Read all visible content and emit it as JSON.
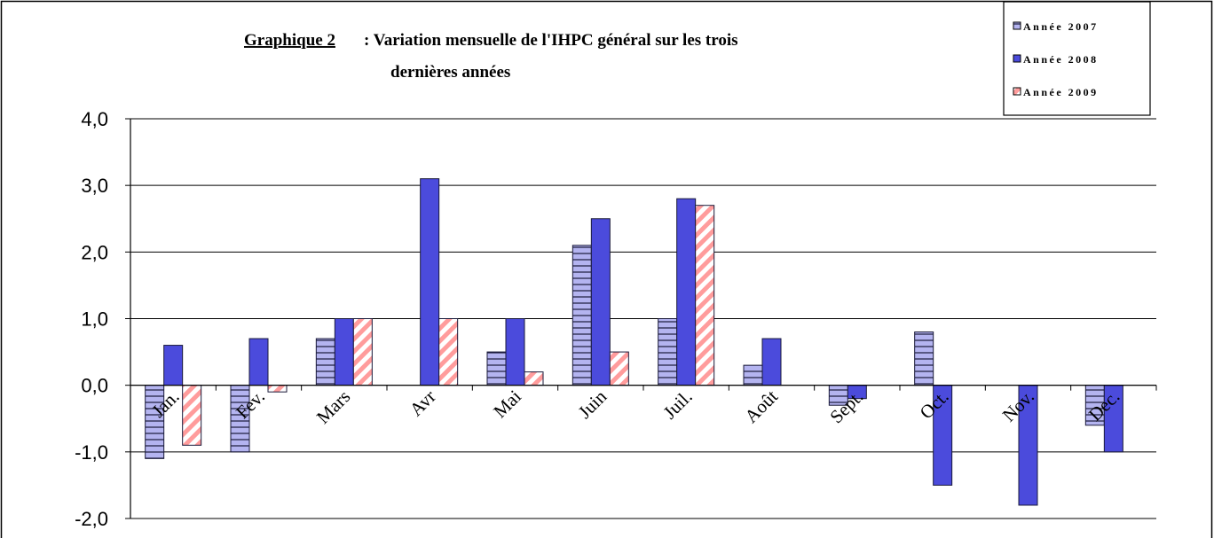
{
  "chart_data": {
    "type": "bar",
    "figure_label": "Graphique 2",
    "title_lines": [
      ":  Variation mensuelle de l'IHPC général sur les trois",
      "dernières années"
    ],
    "categories": [
      "Jan.",
      "Fev.",
      "Mars",
      "Avr",
      "Mai",
      "Juin",
      "Juil.",
      "Août",
      "Sept.",
      "Oct.",
      "Nov.",
      "Dec."
    ],
    "series": [
      {
        "name": "Année 2007",
        "color": "#b4b4f0",
        "pattern": "horizontal",
        "values": [
          -1.1,
          -1.0,
          0.7,
          0,
          0.5,
          2.1,
          1.0,
          0.3,
          -0.3,
          0.8,
          0,
          -0.6
        ]
      },
      {
        "name": "Année 2008",
        "color": "#4b4bdc",
        "pattern": "solid",
        "values": [
          0.6,
          0.7,
          1.0,
          3.1,
          1.0,
          2.5,
          2.8,
          0.7,
          -0.2,
          -1.5,
          -1.8,
          -1.0
        ]
      },
      {
        "name": "Année 2009",
        "color": "#ff9c9c",
        "pattern": "diagonal",
        "values": [
          -0.9,
          -0.1,
          1.0,
          1.0,
          0.2,
          0.5,
          2.7,
          null,
          null,
          null,
          null,
          null
        ]
      }
    ],
    "ylim": [
      -2,
      4
    ],
    "yticks": [
      {
        "value": -2,
        "label": "-2,0"
      },
      {
        "value": -1,
        "label": "-1,0"
      },
      {
        "value": 0,
        "label": "0,0"
      },
      {
        "value": 1,
        "label": "1,0"
      },
      {
        "value": 2,
        "label": "2,0"
      },
      {
        "value": 3,
        "label": "3,0"
      },
      {
        "value": 4,
        "label": "4,0"
      }
    ],
    "grid": true,
    "legend": "upper right"
  }
}
